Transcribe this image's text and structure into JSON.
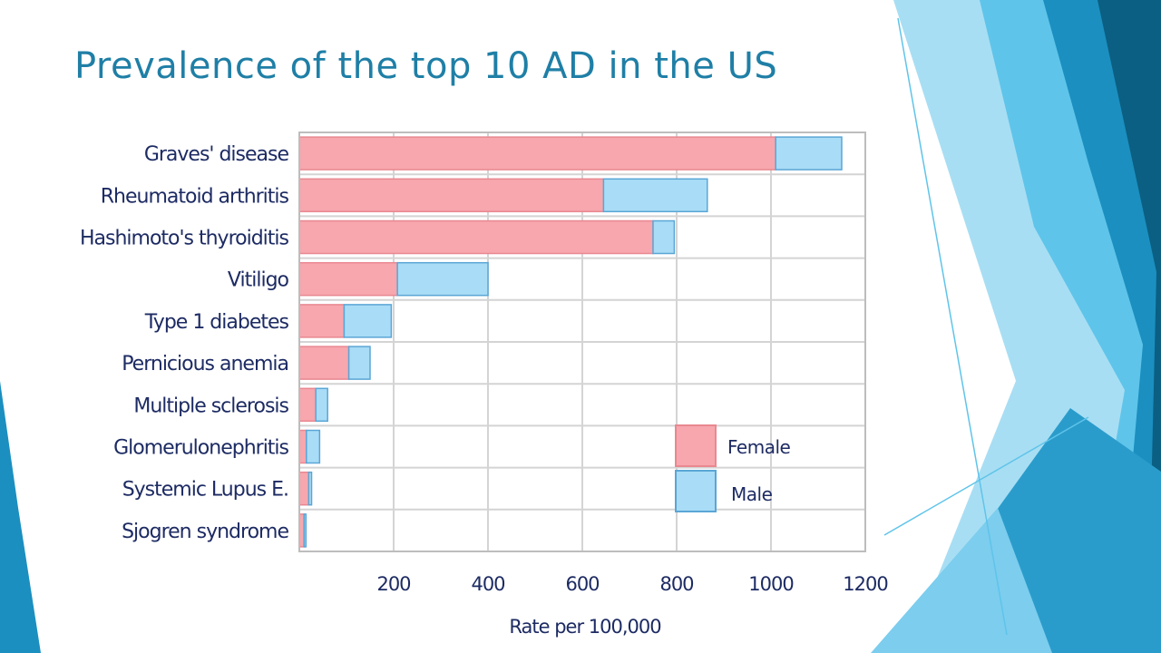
{
  "slide": {
    "title": "Prevalence of the top 10 AD in the US",
    "accent_colors": [
      "#0b5f82",
      "#1b8fc0",
      "#5fc4ea",
      "#a8def3"
    ]
  },
  "chart_data": {
    "type": "bar",
    "orientation": "horizontal",
    "stacked": true,
    "title": "",
    "xlabel": "Rate per 100,000",
    "ylabel": "",
    "xlim": [
      0,
      1200
    ],
    "xticks": [
      200,
      400,
      600,
      800,
      1000,
      1200
    ],
    "grid": true,
    "legend_position": "lower-right",
    "categories": [
      "Graves' disease",
      "Rheumatoid arthritis",
      "Hashimoto's thyroiditis",
      "Vitiligo",
      "Type 1 diabetes",
      "Pernicious anemia",
      "Multiple sclerosis",
      "Glomerulonephritis",
      "Systemic Lupus E.",
      "Sjogren syndrome"
    ],
    "series": [
      {
        "name": "Female",
        "color": "#f7a7ad",
        "values": [
          1010,
          645,
          750,
          208,
          95,
          105,
          35,
          15,
          20,
          10
        ]
      },
      {
        "name": "Male",
        "color": "#a9dcf6",
        "values": [
          140,
          220,
          45,
          192,
          100,
          45,
          25,
          28,
          6,
          4
        ]
      }
    ]
  }
}
